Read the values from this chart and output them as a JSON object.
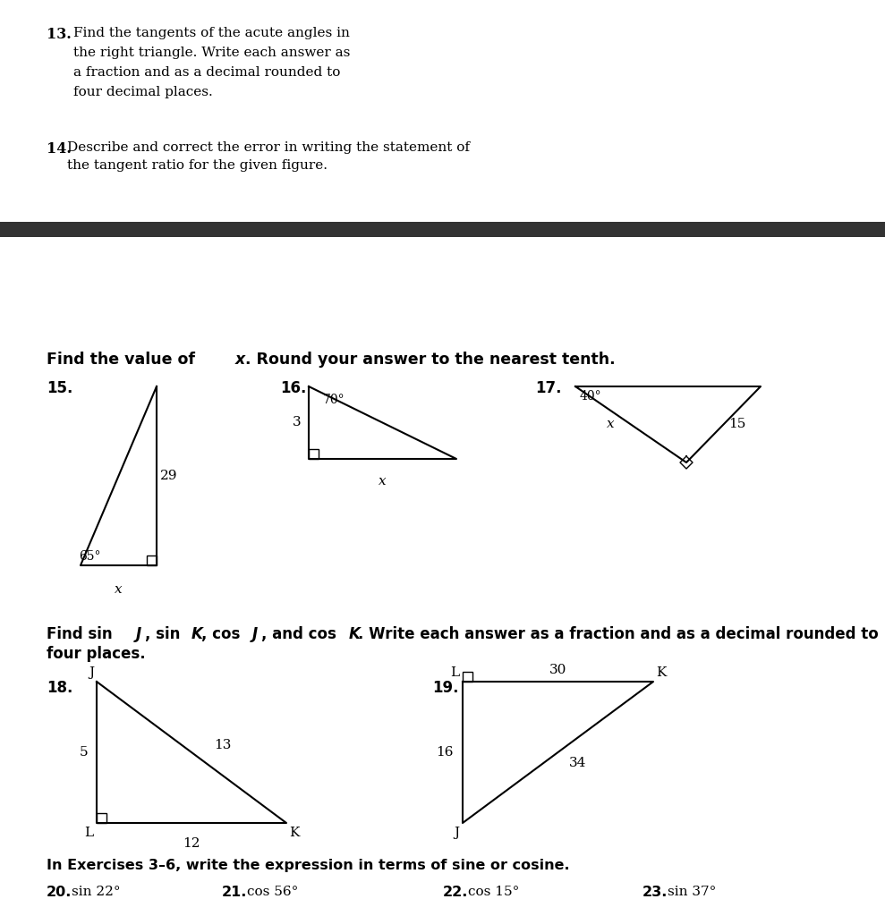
{
  "bg_color": "#ffffff",
  "q13_number": "13.",
  "q13_text_line1": "Find the tangents of the acute angles in",
  "q13_text_line2": "the right triangle. Write each answer as",
  "q13_text_line3": "a fraction and as a decimal rounded to",
  "q13_text_line4": "four decimal places.",
  "q14_number": "14.",
  "q14_text_line1": "Describe and correct the error in writing the statement of",
  "q14_text_line2": "the tangent ratio for the given figure.",
  "section_header_find_x": "Find the value of ",
  "section_header_find_x_italic": "x",
  "section_header_find_x2": ". Round your answer to the nearest tenth.",
  "q15_label": "15.",
  "q16_label": "16.",
  "q17_label": "17.",
  "q18_label": "18.",
  "q19_label": "19.",
  "section_header_sin_cos_bold": "Find sin ",
  "section_header_exercises": "In Exercises 3–6, write the expression in terms of sine or cosine.",
  "q20_num": "20.",
  "q20_text": "sin 22°",
  "q21_num": "21.",
  "q21_text": "cos 56°",
  "q22_num": "22.",
  "q22_text": "cos 15°",
  "q23_num": "23.",
  "q23_text": "sin 37°"
}
